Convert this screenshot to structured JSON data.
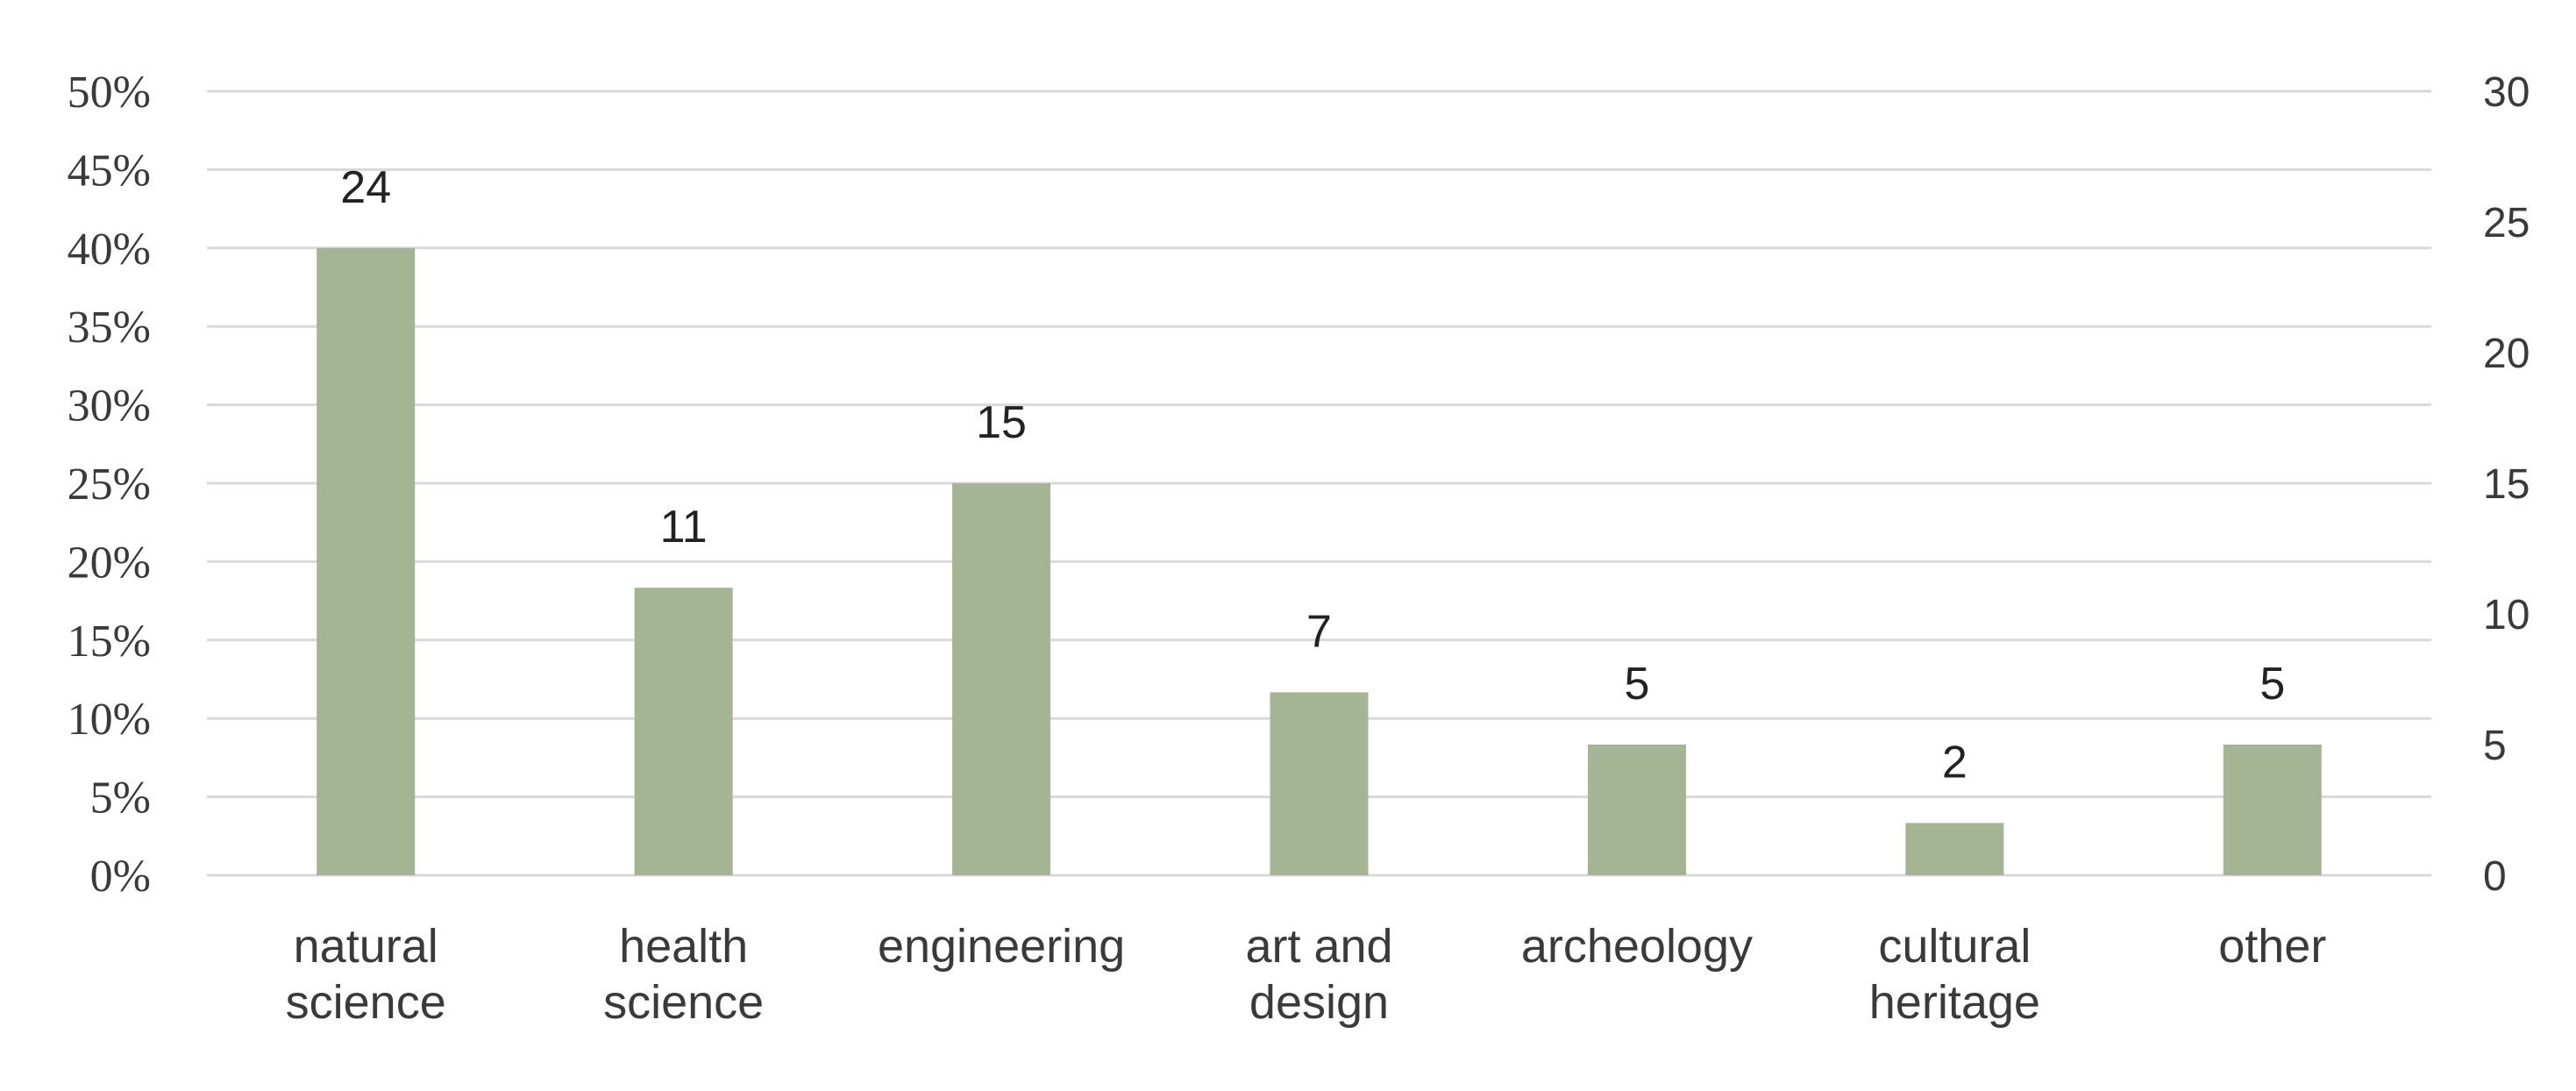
{
  "chart_data": {
    "type": "bar",
    "title": "",
    "xlabel": "",
    "ylabel": "",
    "categories": [
      [
        "natural",
        "science"
      ],
      [
        "health",
        "science"
      ],
      [
        "engineering"
      ],
      [
        "art and",
        "design"
      ],
      [
        "archeology"
      ],
      [
        "cultural",
        "heritage"
      ],
      [
        "other"
      ]
    ],
    "values": [
      24,
      11,
      15,
      7,
      5,
      2,
      5
    ],
    "data_labels": [
      "24",
      "11",
      "15",
      "7",
      "5",
      "2",
      "5"
    ],
    "y_left_ticks": [
      "0%",
      "5%",
      "10%",
      "15%",
      "20%",
      "25%",
      "30%",
      "35%",
      "40%",
      "45%",
      "50%"
    ],
    "y_right_ticks": [
      "0",
      "5",
      "10",
      "15",
      "20",
      "25",
      "30"
    ],
    "ylim_right": [
      0,
      30
    ],
    "ylim_left": [
      0,
      50
    ],
    "grid": true,
    "legend": "none",
    "bar_color": "#a5b493",
    "grid_color": "#d9d9d9"
  }
}
